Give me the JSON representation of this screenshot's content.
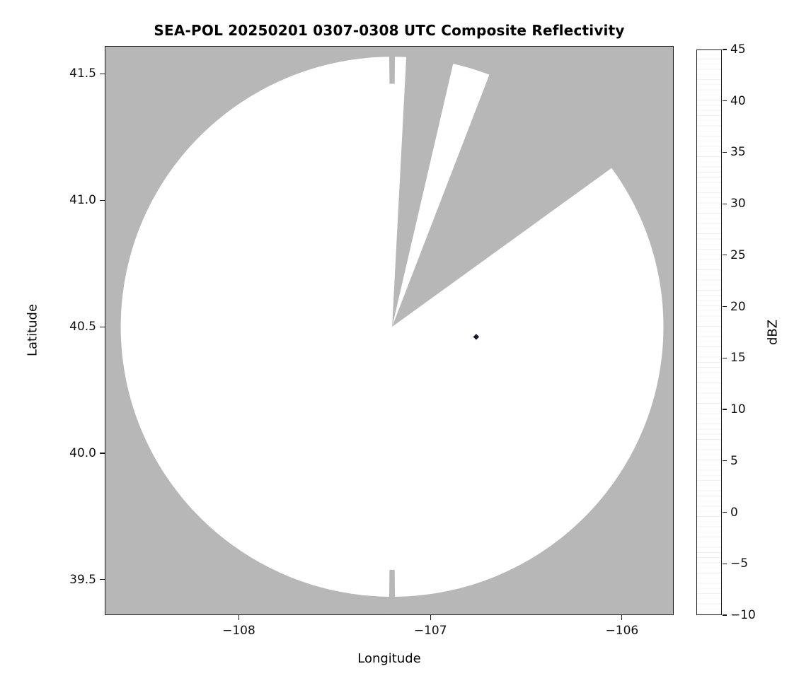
{
  "title": "SEA-POL 20250201 0307-0308 UTC Composite Reflectivity",
  "axes": {
    "xlabel": "Longitude",
    "ylabel": "Latitude",
    "x_tick_labels": [
      "−108",
      "−107",
      "−106"
    ],
    "y_tick_labels": [
      "41.5",
      "41.0",
      "40.5",
      "40.0",
      "39.5"
    ]
  },
  "colorbar": {
    "label": "dBZ",
    "min": -10,
    "max": 45,
    "tick_values": [
      45,
      40,
      35,
      30,
      25,
      20,
      15,
      10,
      5,
      0,
      -5,
      -10
    ],
    "tick_labels": [
      "45",
      "40",
      "35",
      "30",
      "25",
      "20",
      "15",
      "10",
      "5",
      "0",
      "−5",
      "−10"
    ],
    "stops": [
      {
        "v": -10,
        "c": "#080808"
      },
      {
        "v": -8.5,
        "c": "#0e0e16"
      },
      {
        "v": -7,
        "c": "#141233"
      },
      {
        "v": -5.5,
        "c": "#1a1c44"
      },
      {
        "v": -4,
        "c": "#22284f"
      },
      {
        "v": -2.5,
        "c": "#283457"
      },
      {
        "v": -1,
        "c": "#2e4160"
      },
      {
        "v": 0.5,
        "c": "#33506b0"
      },
      {
        "v": 2,
        "c": "#3a6278"
      },
      {
        "v": 3.5,
        "c": "#3f6f7e"
      },
      {
        "v": 5,
        "c": "#44807f"
      },
      {
        "v": 7,
        "c": "#41907a"
      },
      {
        "v": 8.5,
        "c": "#459c6b"
      },
      {
        "v": 10,
        "c": "#52a95c"
      },
      {
        "v": 12,
        "c": "#6fb551"
      },
      {
        "v": 13.5,
        "c": "#8fc153"
      },
      {
        "v": 15,
        "c": "#b2cc63"
      },
      {
        "v": 16,
        "c": "#d3dc85"
      },
      {
        "v": 17,
        "c": "#ecebb9"
      },
      {
        "v": 18,
        "c": "#f0e6ad"
      },
      {
        "v": 19,
        "c": "#eed68b"
      },
      {
        "v": 20.5,
        "c": "#ebc167"
      },
      {
        "v": 22,
        "c": "#e7ab4b"
      },
      {
        "v": 23.5,
        "c": "#e49a3e"
      },
      {
        "v": 25,
        "c": "#df8434"
      },
      {
        "v": 26.5,
        "c": "#d96d2e"
      },
      {
        "v": 28,
        "c": "#d0542f"
      },
      {
        "v": 29.5,
        "c": "#c44134"
      },
      {
        "v": 31,
        "c": "#b23046"
      },
      {
        "v": 32.5,
        "c": "#a02a55"
      },
      {
        "v": 34,
        "c": "#a12a67"
      },
      {
        "v": 35.5,
        "c": "#ad3378"
      },
      {
        "v": 37,
        "c": "#bc4b92"
      },
      {
        "v": 38.5,
        "c": "#cb6cab"
      },
      {
        "v": 40,
        "c": "#d88cc3"
      },
      {
        "v": 41,
        "c": "#d09cd0"
      },
      {
        "v": 42,
        "c": "#b48ac8"
      },
      {
        "v": 43,
        "c": "#9668b5"
      },
      {
        "v": 44,
        "c": "#6f3f96"
      },
      {
        "v": 45,
        "c": "#36175e"
      }
    ]
  },
  "colors": {
    "background": "#ffffff",
    "no_data_gray": "#b7b7b7",
    "coverage_white": "#ffffff",
    "axis_line": "#1a1a1a",
    "echo_dark": "#15152b"
  },
  "chart_data": {
    "type": "heatmap",
    "subtype": "radar-composite-reflectivity-map",
    "title": "SEA-POL 20250201 0307-0308 UTC Composite Reflectivity",
    "xlabel": "Longitude",
    "ylabel": "Latitude",
    "xlim": [
      -108.7,
      -105.73
    ],
    "ylim": [
      39.36,
      41.61
    ],
    "x_tick_values": [
      -108,
      -107,
      -106
    ],
    "y_tick_values": [
      41.5,
      41.0,
      40.5,
      40.0,
      39.5
    ],
    "grid": false,
    "colorbar_label": "dBZ",
    "colorbar_range": [
      -10,
      45
    ],
    "colorbar_tick_step": 5,
    "legend_position": "right-colorbar",
    "radar": {
      "center_lon": -107.2,
      "center_lat": 40.5,
      "coverage_radius_deg_lon": 1.42,
      "coverage_radius_deg_lat": 1.07,
      "blocked_sectors_azimuth_deg": [
        [
          3,
          13
        ],
        [
          21,
          54
        ]
      ],
      "seam_notches_azimuth_deg": [
        [
          -0.6,
          0.6
        ],
        [
          179.4,
          180.6
        ]
      ],
      "coverage_fill": "white (scanned area, no significant echo)",
      "no_data_fill": "gray (outside coverage / blocked)"
    },
    "echoes": [
      {
        "lon": -106.76,
        "lat": 40.46,
        "dbz_estimate": -8
      }
    ]
  }
}
